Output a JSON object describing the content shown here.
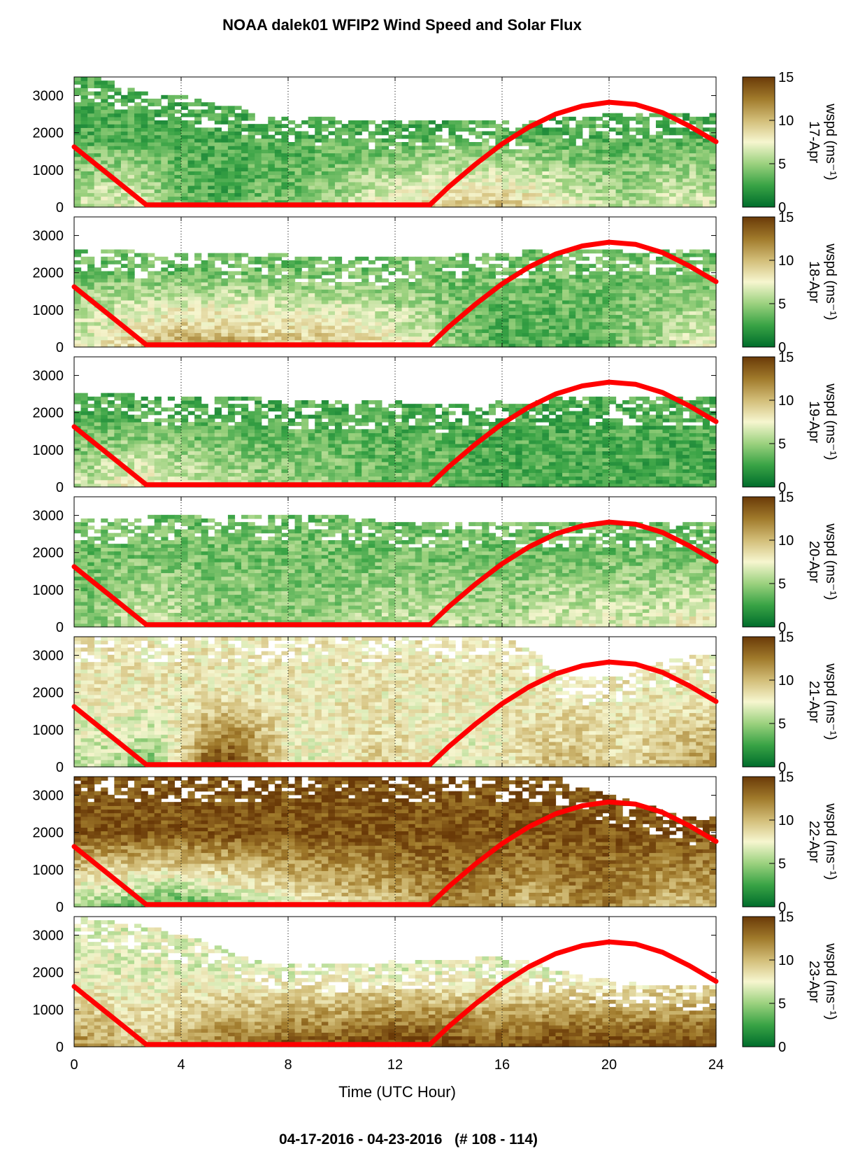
{
  "title": "NOAA dalek01 WFIP2 Wind Speed and Solar Flux",
  "footer": "04-17-2016 - 04-23-2016   (# 108 - 114)",
  "xlabel": "Time (UTC Hour)",
  "chart_data": {
    "type": "heatmap",
    "xlim": [
      0,
      24
    ],
    "ylim": [
      0,
      3500
    ],
    "x_ticks": [
      0,
      4,
      8,
      12,
      16,
      20,
      24
    ],
    "x_tick_labels": [
      "0",
      "4",
      "8",
      "12",
      "16",
      "20",
      "24"
    ],
    "y_ticks": [
      0,
      1000,
      2000,
      3000
    ],
    "y_tick_labels": [
      "0",
      "1000",
      "2000",
      "3000"
    ],
    "vertical_grid": "dotted at 4, 8, 12, 16, 20",
    "colorbar": {
      "range": [
        0,
        15
      ],
      "ticks": [
        0,
        5,
        10,
        15
      ],
      "tick_labels": [
        "0",
        "5",
        "10",
        "15"
      ],
      "colormap": "green-white-brown",
      "colors": [
        "#006d2c",
        "#39a345",
        "#9bd17e",
        "#f6f6cf",
        "#d2bd78",
        "#a07a2b",
        "#6a3a08"
      ]
    },
    "solar_flux_color": "#ff0000",
    "solar_flux_curve": {
      "x": [
        0,
        2.7,
        13.3,
        14,
        15,
        16,
        17,
        18,
        19,
        20,
        21,
        22,
        23,
        24
      ],
      "y": [
        1620,
        60,
        60,
        540,
        1150,
        1700,
        2150,
        2500,
        2720,
        2820,
        2760,
        2540,
        2180,
        1760
      ]
    },
    "panels": [
      {
        "label": "17-Apr",
        "colorbar_label": "wspd (ms⁻¹)",
        "lowlevel_speed": [
          6,
          7,
          7,
          6,
          4,
          3,
          3,
          4,
          4,
          5,
          6,
          7,
          8,
          9,
          9,
          10,
          10,
          9,
          8,
          7,
          6,
          6,
          7,
          7
        ],
        "upper_speed": 3,
        "data_top": [
          3500,
          3500,
          3200,
          3000,
          3000,
          2800,
          2700,
          2500,
          2400,
          2400,
          2400,
          2300,
          2300,
          2300,
          2300,
          2300,
          2300,
          2300,
          2400,
          2400,
          2500,
          2500,
          2500,
          2500
        ]
      },
      {
        "label": "18-Apr",
        "colorbar_label": "wspd (ms⁻¹)",
        "lowlevel_speed": [
          7,
          8,
          9,
          10,
          11,
          11,
          11,
          10,
          10,
          10,
          10,
          9,
          8,
          7,
          5,
          4,
          3,
          3,
          3,
          3,
          4,
          5,
          6,
          7
        ],
        "upper_speed": 4,
        "data_top": [
          2600,
          2600,
          2600,
          2500,
          2500,
          2500,
          2500,
          2500,
          2500,
          2400,
          2400,
          2400,
          2400,
          2400,
          2500,
          2500,
          2500,
          2600,
          2600,
          2600,
          2600,
          2600,
          2600,
          2600
        ]
      },
      {
        "label": "19-Apr",
        "colorbar_label": "wspd (ms⁻¹)",
        "lowlevel_speed": [
          6,
          7,
          8,
          8,
          7,
          6,
          6,
          5,
          5,
          5,
          5,
          4,
          4,
          4,
          4,
          3,
          3,
          3,
          3,
          3,
          3,
          3,
          3,
          3
        ],
        "upper_speed": 3,
        "data_top": [
          2500,
          2500,
          2500,
          2400,
          2400,
          2400,
          2400,
          2400,
          2300,
          2300,
          2300,
          2300,
          2300,
          2200,
          2200,
          2200,
          2300,
          2300,
          2400,
          2400,
          2400,
          2400,
          2400,
          2400
        ]
      },
      {
        "label": "20-Apr",
        "colorbar_label": "wspd (ms⁻¹)",
        "lowlevel_speed": [
          4,
          5,
          6,
          7,
          6,
          5,
          5,
          5,
          5,
          5,
          5,
          6,
          6,
          6,
          6,
          6,
          6,
          6,
          7,
          7,
          7,
          7,
          7,
          8
        ],
        "upper_speed": 4,
        "data_top": [
          2900,
          2900,
          2900,
          3000,
          3000,
          3000,
          3000,
          3000,
          3000,
          3000,
          3000,
          2900,
          2800,
          2800,
          2800,
          2800,
          2800,
          2800,
          2800,
          2800,
          2800,
          2800,
          2800,
          2800
        ]
      },
      {
        "label": "21-Apr",
        "colorbar_label": "wspd (ms⁻¹)",
        "lowlevel_speed": [
          6,
          6,
          5,
          4,
          9,
          14,
          15,
          12,
          8,
          7,
          8,
          9,
          9,
          8,
          7,
          7,
          8,
          9,
          10,
          10,
          9,
          9,
          10,
          11
        ],
        "upper_speed": 8,
        "data_top": [
          3500,
          3500,
          3500,
          3500,
          3500,
          3500,
          3500,
          3500,
          3500,
          3500,
          3500,
          3500,
          3500,
          3500,
          3500,
          3500,
          3500,
          3200,
          2600,
          2400,
          2400,
          2600,
          2800,
          3000
        ]
      },
      {
        "label": "22-Apr",
        "colorbar_label": "wspd (ms⁻¹)",
        "lowlevel_speed": [
          5,
          4,
          4,
          3,
          3,
          4,
          5,
          6,
          7,
          8,
          9,
          9,
          10,
          11,
          12,
          12,
          11,
          10,
          11,
          12,
          12,
          11,
          10,
          10
        ],
        "upper_speed": 14,
        "data_top": [
          3500,
          3500,
          3500,
          3500,
          3500,
          3500,
          3500,
          3500,
          3500,
          3500,
          3500,
          3500,
          3500,
          3500,
          3500,
          3500,
          3500,
          3500,
          3500,
          3200,
          3000,
          2800,
          2600,
          2400
        ]
      },
      {
        "label": "23-Apr",
        "colorbar_label": "wspd (ms⁻¹)",
        "lowlevel_speed": [
          12,
          11,
          10,
          10,
          11,
          12,
          13,
          13,
          14,
          14,
          14,
          15,
          15,
          15,
          15,
          14,
          14,
          14,
          15,
          15,
          15,
          15,
          15,
          15
        ],
        "upper_speed": 7,
        "data_top": [
          3500,
          3400,
          3300,
          3200,
          3000,
          2800,
          2500,
          2300,
          2200,
          2200,
          2200,
          2200,
          2300,
          2300,
          2300,
          2400,
          2400,
          2300,
          2100,
          1900,
          1800,
          1700,
          1700,
          1700
        ]
      }
    ]
  }
}
